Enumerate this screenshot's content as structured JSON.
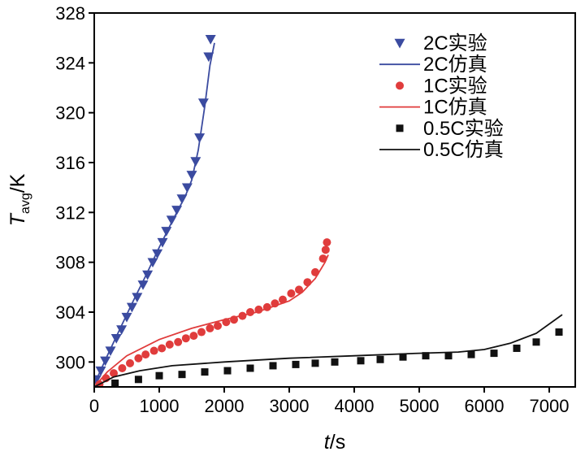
{
  "chart_data": {
    "type": "scatter",
    "title": "",
    "xlabel": {
      "main": "t",
      "unit": "/s"
    },
    "ylabel": {
      "main": "T",
      "sub": "avg",
      "unit": "/K"
    },
    "xlim": [
      0,
      7400
    ],
    "ylim": [
      298,
      328
    ],
    "xticks": [
      0,
      1000,
      2000,
      3000,
      4000,
      5000,
      6000,
      7000
    ],
    "yticks": [
      300,
      304,
      308,
      312,
      316,
      320,
      324,
      328
    ],
    "legend_position": "top-right",
    "series": [
      {
        "name": "2C实验",
        "kind": "marker",
        "marker": "triangle-down",
        "color": "#3b4ba0",
        "points": [
          [
            30,
            298.6
          ],
          [
            100,
            299.3
          ],
          [
            170,
            300.1
          ],
          [
            250,
            300.9
          ],
          [
            340,
            301.9
          ],
          [
            420,
            302.6
          ],
          [
            500,
            303.6
          ],
          [
            580,
            304.4
          ],
          [
            660,
            305.2
          ],
          [
            750,
            306.2
          ],
          [
            820,
            307.0
          ],
          [
            900,
            308.0
          ],
          [
            970,
            308.7
          ],
          [
            1050,
            309.6
          ],
          [
            1110,
            310.5
          ],
          [
            1190,
            311.4
          ],
          [
            1270,
            312.2
          ],
          [
            1350,
            313.1
          ],
          [
            1430,
            314.0
          ],
          [
            1500,
            315.0
          ],
          [
            1560,
            316.1
          ],
          [
            1620,
            318.0
          ],
          [
            1680,
            320.8
          ],
          [
            1760,
            324.5
          ],
          [
            1790,
            325.9
          ]
        ]
      },
      {
        "name": "2C仿真",
        "kind": "line",
        "color": "#3b4ba0",
        "points": [
          [
            0,
            298.2
          ],
          [
            200,
            300.5
          ],
          [
            400,
            302.7
          ],
          [
            600,
            304.9
          ],
          [
            800,
            307.0
          ],
          [
            1000,
            309.2
          ],
          [
            1200,
            311.3
          ],
          [
            1400,
            313.3
          ],
          [
            1500,
            314.6
          ],
          [
            1600,
            317.0
          ],
          [
            1700,
            320.5
          ],
          [
            1780,
            323.8
          ],
          [
            1850,
            325.6
          ]
        ]
      },
      {
        "name": "1C实验",
        "kind": "marker",
        "marker": "circle",
        "color": "#e03c3c",
        "points": [
          [
            80,
            298.2
          ],
          [
            180,
            298.7
          ],
          [
            300,
            299.1
          ],
          [
            430,
            299.5
          ],
          [
            550,
            299.9
          ],
          [
            680,
            300.3
          ],
          [
            790,
            300.6
          ],
          [
            920,
            300.9
          ],
          [
            1040,
            301.1
          ],
          [
            1160,
            301.4
          ],
          [
            1290,
            301.6
          ],
          [
            1410,
            301.9
          ],
          [
            1530,
            302.1
          ],
          [
            1650,
            302.4
          ],
          [
            1780,
            302.7
          ],
          [
            1900,
            302.9
          ],
          [
            2030,
            303.2
          ],
          [
            2150,
            303.4
          ],
          [
            2280,
            303.7
          ],
          [
            2400,
            304.0
          ],
          [
            2530,
            304.2
          ],
          [
            2660,
            304.4
          ],
          [
            2780,
            304.7
          ],
          [
            2900,
            305.0
          ],
          [
            3030,
            305.5
          ],
          [
            3150,
            305.8
          ],
          [
            3280,
            306.4
          ],
          [
            3400,
            307.2
          ],
          [
            3520,
            308.3
          ],
          [
            3560,
            309.0
          ],
          [
            3580,
            309.6
          ]
        ]
      },
      {
        "name": "1C仿真",
        "kind": "line",
        "color": "#e03c3c",
        "points": [
          [
            0,
            298.0
          ],
          [
            200,
            299.2
          ],
          [
            500,
            300.5
          ],
          [
            1000,
            301.8
          ],
          [
            1500,
            302.7
          ],
          [
            2000,
            303.4
          ],
          [
            2500,
            304.0
          ],
          [
            3000,
            304.9
          ],
          [
            3200,
            305.6
          ],
          [
            3400,
            306.7
          ],
          [
            3550,
            308.0
          ],
          [
            3600,
            308.6
          ]
        ]
      },
      {
        "name": "0.5C实验",
        "kind": "marker",
        "marker": "square",
        "color": "#111111",
        "points": [
          [
            320,
            298.3
          ],
          [
            680,
            298.6
          ],
          [
            1000,
            298.9
          ],
          [
            1350,
            299.0
          ],
          [
            1700,
            299.2
          ],
          [
            2050,
            299.3
          ],
          [
            2400,
            299.5
          ],
          [
            2750,
            299.7
          ],
          [
            3100,
            299.8
          ],
          [
            3400,
            299.9
          ],
          [
            3700,
            300.0
          ],
          [
            4100,
            300.1
          ],
          [
            4400,
            300.2
          ],
          [
            4750,
            300.4
          ],
          [
            5100,
            300.5
          ],
          [
            5450,
            300.5
          ],
          [
            5800,
            300.6
          ],
          [
            6150,
            300.7
          ],
          [
            6500,
            301.1
          ],
          [
            6800,
            301.6
          ],
          [
            7150,
            302.4
          ]
        ]
      },
      {
        "name": "0.5C仿真",
        "kind": "line",
        "color": "#111111",
        "points": [
          [
            0,
            298.0
          ],
          [
            300,
            298.8
          ],
          [
            700,
            299.3
          ],
          [
            1200,
            299.7
          ],
          [
            2000,
            300.0
          ],
          [
            3000,
            300.3
          ],
          [
            4000,
            300.5
          ],
          [
            5000,
            300.7
          ],
          [
            5600,
            300.8
          ],
          [
            6000,
            301.0
          ],
          [
            6400,
            301.5
          ],
          [
            6800,
            302.3
          ],
          [
            7200,
            303.8
          ]
        ]
      }
    ]
  }
}
